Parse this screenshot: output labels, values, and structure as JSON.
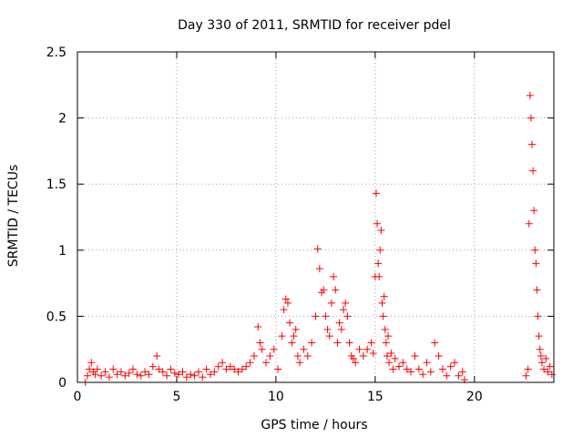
{
  "chart_data": {
    "type": "scatter",
    "title": "Day 330 of 2011, SRMTID for receiver pdel",
    "xlabel": "GPS time / hours",
    "ylabel": "SRMTID / TECUs",
    "xlim": [
      0,
      24
    ],
    "ylim": [
      0,
      2.5
    ],
    "xticks": [
      0,
      5,
      10,
      15,
      20
    ],
    "yticks": [
      0,
      0.5,
      1,
      1.5,
      2,
      2.5
    ],
    "xtick_labels": [
      "0",
      "5",
      "10",
      "15",
      "20"
    ],
    "ytick_labels": [
      "0",
      "0.5",
      "1",
      "1.5",
      "2",
      "2.5"
    ],
    "grid": true,
    "marker": "+",
    "series_color": "#ff0000",
    "series": [
      {
        "x": [
          0.4,
          0.5,
          0.6,
          0.7,
          0.8,
          0.9,
          1.0,
          1.2,
          1.4,
          1.6,
          1.8,
          2.0,
          2.2,
          2.4,
          2.6,
          2.8,
          3.0,
          3.2,
          3.4,
          3.6,
          3.8,
          4.0,
          4.1,
          4.3,
          4.5,
          4.7,
          4.9,
          5.1,
          5.3,
          5.5,
          5.7,
          5.9,
          6.1,
          6.3,
          6.5,
          6.7,
          6.9,
          7.1,
          7.3,
          7.5,
          7.7,
          7.9,
          8.1,
          8.3,
          8.5,
          8.7,
          8.9,
          9.1,
          9.2,
          9.3,
          9.5,
          9.7,
          9.9,
          10.1,
          10.3,
          10.4,
          10.5,
          10.6,
          10.7,
          10.8,
          10.9,
          11.0,
          11.1,
          11.2,
          11.4,
          11.6,
          11.8,
          12.0,
          12.1,
          12.2,
          12.3,
          12.4,
          12.5,
          12.6,
          12.7,
          12.8,
          12.9,
          13.0,
          13.1,
          13.2,
          13.3,
          13.4,
          13.5,
          13.6,
          13.7,
          13.8,
          13.9,
          14.0,
          14.2,
          14.4,
          14.6,
          14.8,
          14.9,
          15.0,
          15.05,
          15.1,
          15.15,
          15.2,
          15.25,
          15.3,
          15.35,
          15.4,
          15.45,
          15.5,
          15.55,
          15.6,
          15.65,
          15.7,
          15.8,
          15.9,
          16.0,
          16.2,
          16.4,
          16.6,
          16.8,
          17.0,
          17.2,
          17.4,
          17.6,
          17.8,
          18.0,
          18.2,
          18.4,
          18.6,
          18.8,
          19.0,
          19.2,
          19.4,
          19.5,
          22.6,
          22.7,
          22.75,
          22.8,
          22.85,
          22.9,
          22.95,
          23.0,
          23.05,
          23.1,
          23.15,
          23.2,
          23.25,
          23.3,
          23.35,
          23.4,
          23.5,
          23.6,
          23.7,
          23.8,
          23.9
        ],
        "y": [
          0.0,
          0.05,
          0.1,
          0.15,
          0.08,
          0.06,
          0.1,
          0.05,
          0.08,
          0.04,
          0.1,
          0.06,
          0.08,
          0.05,
          0.07,
          0.1,
          0.06,
          0.05,
          0.08,
          0.06,
          0.12,
          0.2,
          0.1,
          0.08,
          0.05,
          0.1,
          0.07,
          0.06,
          0.08,
          0.04,
          0.06,
          0.05,
          0.08,
          0.04,
          0.1,
          0.06,
          0.08,
          0.12,
          0.15,
          0.1,
          0.12,
          0.1,
          0.08,
          0.1,
          0.12,
          0.15,
          0.2,
          0.42,
          0.3,
          0.25,
          0.15,
          0.2,
          0.25,
          0.1,
          0.35,
          0.55,
          0.63,
          0.6,
          0.45,
          0.3,
          0.35,
          0.4,
          0.2,
          0.15,
          0.25,
          0.2,
          0.3,
          0.5,
          1.01,
          0.86,
          0.68,
          0.7,
          0.5,
          0.4,
          0.35,
          0.6,
          0.8,
          0.7,
          0.3,
          0.45,
          0.4,
          0.55,
          0.6,
          0.5,
          0.3,
          0.2,
          0.18,
          0.15,
          0.25,
          0.2,
          0.25,
          0.3,
          0.22,
          0.8,
          1.43,
          1.2,
          0.9,
          0.8,
          1.0,
          1.15,
          0.6,
          0.5,
          0.65,
          0.4,
          0.3,
          0.2,
          0.35,
          0.15,
          0.22,
          0.1,
          0.18,
          0.12,
          0.15,
          0.1,
          0.08,
          0.2,
          0.1,
          0.06,
          0.15,
          0.08,
          0.3,
          0.2,
          0.1,
          0.05,
          0.12,
          0.15,
          0.05,
          0.08,
          0.02,
          0.05,
          0.1,
          1.2,
          2.17,
          2.0,
          1.8,
          1.6,
          1.3,
          1.0,
          0.9,
          0.7,
          0.5,
          0.35,
          0.25,
          0.2,
          0.15,
          0.1,
          0.18,
          0.08,
          0.12,
          0.06
        ]
      }
    ]
  }
}
